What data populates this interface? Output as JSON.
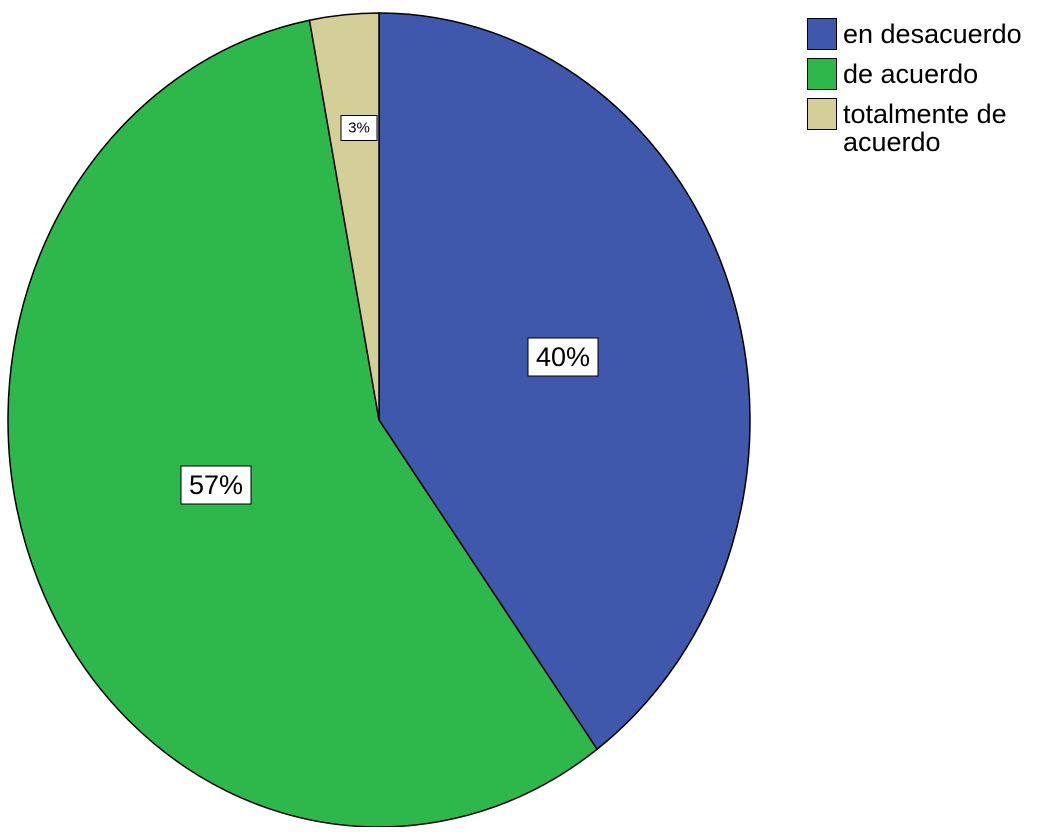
{
  "chart_data": {
    "type": "pie",
    "title": "",
    "slices": [
      {
        "label": "en desacuerdo",
        "value": 40,
        "display": "40%",
        "color": "#3F58AB"
      },
      {
        "label": "de acuerdo",
        "value": 57,
        "display": "57%",
        "color": "#2EB84B"
      },
      {
        "label": "totalmente de acuerdo",
        "value": 3,
        "display": "3%",
        "color": "#D4CE98"
      }
    ],
    "start_angle_deg": 0,
    "direction": "clockwise",
    "legend_position": "top-right"
  }
}
